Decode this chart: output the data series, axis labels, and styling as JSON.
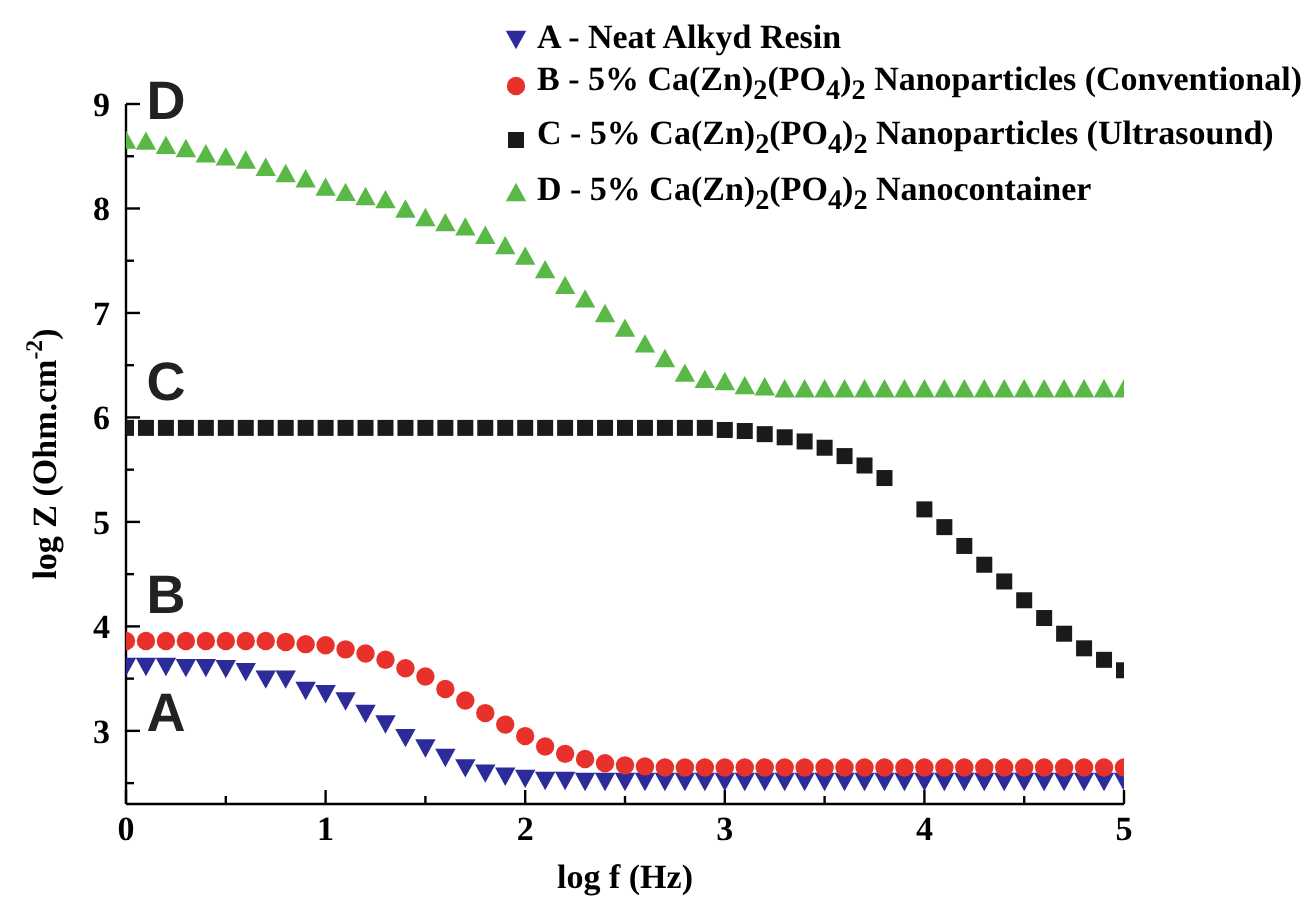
{
  "chart_data": {
    "type": "scatter",
    "xlabel": "log f (Hz)",
    "ylabel": "log Z (Ohm.cm$^{-2}$)",
    "x": [
      0,
      0.1,
      0.2,
      0.3,
      0.4,
      0.5,
      0.6,
      0.7,
      0.8,
      0.9,
      1,
      1.1,
      1.2,
      1.3,
      1.4,
      1.5,
      1.6,
      1.7,
      1.8,
      1.9,
      2,
      2.1,
      2.2,
      2.3,
      2.4,
      2.5,
      2.6,
      2.7,
      2.8,
      2.9,
      3,
      3.1,
      3.2,
      3.3,
      3.4,
      3.5,
      3.6,
      3.7,
      3.8,
      3.9,
      4,
      4.1,
      4.2,
      4.3,
      4.4,
      4.5,
      4.6,
      4.7,
      4.8,
      4.9,
      5
    ],
    "series": [
      {
        "name": "A - Neat Alkyd Resin",
        "color": "#2b2b9a",
        "marker": "triangle-down",
        "values": [
          3.63,
          3.63,
          3.63,
          3.62,
          3.62,
          3.61,
          3.58,
          3.51,
          3.51,
          3.4,
          3.37,
          3.3,
          3.18,
          3.08,
          2.95,
          2.85,
          2.76,
          2.66,
          2.61,
          2.58,
          2.56,
          2.54,
          2.54,
          2.53,
          2.53,
          2.53,
          2.53,
          2.53,
          2.53,
          2.53,
          2.53,
          2.53,
          2.53,
          2.53,
          2.53,
          2.53,
          2.53,
          2.53,
          2.53,
          2.53,
          2.53,
          2.53,
          2.53,
          2.53,
          2.53,
          2.53,
          2.53,
          2.53,
          2.53,
          2.53,
          2.53
        ]
      },
      {
        "name": "B - 5% Ca(Zn)$_{2}$(PO$_{4}$)$_{2}$ Nanoparticles (Conventional)",
        "color": "#e8312a",
        "marker": "circle",
        "values": [
          3.86,
          3.86,
          3.86,
          3.86,
          3.86,
          3.86,
          3.86,
          3.86,
          3.85,
          3.83,
          3.82,
          3.78,
          3.74,
          3.68,
          3.6,
          3.52,
          3.4,
          3.29,
          3.17,
          3.06,
          2.95,
          2.85,
          2.78,
          2.73,
          2.69,
          2.67,
          2.66,
          2.65,
          2.65,
          2.65,
          2.65,
          2.65,
          2.65,
          2.65,
          2.65,
          2.65,
          2.65,
          2.65,
          2.65,
          2.65,
          2.65,
          2.65,
          2.65,
          2.65,
          2.65,
          2.65,
          2.65,
          2.65,
          2.65,
          2.65,
          2.65
        ]
      },
      {
        "name": "C - 5% Ca(Zn)$_{2}$(PO$_{4}$)$_{2}$ Nanoparticles (Ultrasound)",
        "color": "#1a1a1a",
        "marker": "square",
        "values": [
          5.9,
          5.9,
          5.9,
          5.9,
          5.9,
          5.9,
          5.9,
          5.9,
          5.9,
          5.9,
          5.9,
          5.9,
          5.9,
          5.9,
          5.9,
          5.9,
          5.9,
          5.9,
          5.9,
          5.9,
          5.9,
          5.9,
          5.9,
          5.9,
          5.9,
          5.9,
          5.9,
          5.9,
          5.9,
          5.9,
          5.88,
          5.87,
          5.84,
          5.81,
          5.77,
          5.71,
          5.63,
          5.54,
          5.42,
          null,
          5.12,
          4.95,
          4.77,
          4.59,
          4.43,
          4.25,
          4.08,
          3.93,
          3.79,
          3.68,
          3.58
        ]
      },
      {
        "name": "D - 5% Ca(Zn)$_{2}$(PO$_{4}$)$_{2}$ Nanocontainer",
        "color": "#5ab847",
        "marker": "triangle",
        "values": [
          8.64,
          8.63,
          8.59,
          8.56,
          8.51,
          8.48,
          8.45,
          8.38,
          8.32,
          8.27,
          8.19,
          8.14,
          8.1,
          8.07,
          7.98,
          7.9,
          7.85,
          7.81,
          7.73,
          7.63,
          7.53,
          7.4,
          7.25,
          7.12,
          6.98,
          6.84,
          6.69,
          6.55,
          6.41,
          6.35,
          6.33,
          6.29,
          6.28,
          6.26,
          6.26,
          6.26,
          6.26,
          6.26,
          6.26,
          6.26,
          6.26,
          6.26,
          6.26,
          6.26,
          6.26,
          6.26,
          6.26,
          6.26,
          6.26,
          6.26,
          6.26
        ]
      }
    ],
    "xlim": [
      0,
      5
    ],
    "xticks": [
      0,
      {
        "value": 0.5,
        "label": null
      },
      1,
      {
        "value": 1.5,
        "label": null
      },
      2,
      {
        "value": 2.5,
        "label": null
      },
      3,
      {
        "value": 3.5,
        "label": null
      },
      4,
      {
        "value": 4.5,
        "label": null
      },
      5
    ],
    "ylim": [
      2.3,
      9
    ],
    "yticks": [
      {
        "value": 2.5,
        "label": null
      },
      3,
      {
        "value": 3.5,
        "label": null
      },
      4,
      {
        "value": 4.5,
        "label": null
      },
      5,
      {
        "value": 5.5,
        "label": null
      },
      6,
      {
        "value": 6.5,
        "label": null
      },
      7,
      {
        "value": 7.5,
        "label": null
      },
      8,
      {
        "value": 8.5,
        "label": null
      },
      9
    ],
    "legend": "top right",
    "grid": false,
    "annotations": [
      "A",
      "B",
      "C",
      "D"
    ]
  }
}
